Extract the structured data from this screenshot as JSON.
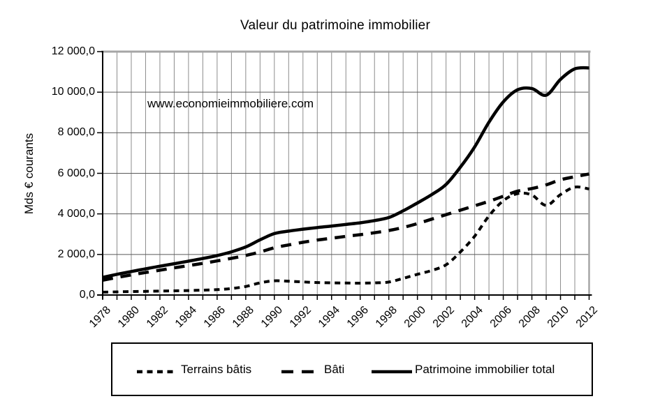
{
  "chart": {
    "title": "Valeur du patrimoine immobilier",
    "ylabel": "Mds € courants",
    "watermark": "www.economieimmobiliere.com",
    "legend": [
      {
        "label": "Terrains bâtis",
        "style": "short-dash"
      },
      {
        "label": "Bâti",
        "style": "long-dash"
      },
      {
        "label": "Patrimoine immobilier total",
        "style": "solid"
      }
    ]
  },
  "chart_data": {
    "type": "line",
    "title": "Valeur du patrimoine immobilier",
    "xlabel": "",
    "ylabel": "Mds € courants",
    "ylim": [
      0,
      12000
    ],
    "grid": true,
    "legend_position": "bottom",
    "line_color": "#000000",
    "grid_color_vertical": "#8c8c8c",
    "grid_color_horizontal": "#595959",
    "x": [
      1978,
      1979,
      1980,
      1981,
      1982,
      1983,
      1984,
      1985,
      1986,
      1987,
      1988,
      1989,
      1990,
      1991,
      1992,
      1993,
      1994,
      1995,
      1996,
      1997,
      1998,
      1999,
      2000,
      2001,
      2002,
      2003,
      2004,
      2005,
      2006,
      2007,
      2008,
      2009,
      2010,
      2011,
      2012
    ],
    "x_tick_years": [
      1978,
      1980,
      1982,
      1984,
      1986,
      1988,
      1990,
      1992,
      1994,
      1996,
      1998,
      2000,
      2002,
      2004,
      2006,
      2008,
      2010,
      2012
    ],
    "y_ticks": [
      {
        "value": 0,
        "label": "0,0"
      },
      {
        "value": 2000,
        "label": "2 000,0"
      },
      {
        "value": 4000,
        "label": "4 000,0"
      },
      {
        "value": 6000,
        "label": "6 000,0"
      },
      {
        "value": 8000,
        "label": "8 000,0"
      },
      {
        "value": 10000,
        "label": "10 000,0"
      },
      {
        "value": 12000,
        "label": "12 000,0"
      }
    ],
    "series": [
      {
        "name": "Terrains bâtis",
        "id": "terrains-batis",
        "style": "short-dash",
        "values": [
          140,
          155,
          170,
          180,
          195,
          205,
          220,
          240,
          265,
          320,
          420,
          600,
          700,
          680,
          645,
          615,
          600,
          590,
          585,
          600,
          640,
          820,
          1020,
          1210,
          1490,
          2120,
          2900,
          3900,
          4650,
          5000,
          4930,
          4420,
          4950,
          5320,
          5230
        ]
      },
      {
        "name": "Bâti",
        "id": "bati",
        "style": "long-dash",
        "values": [
          730,
          865,
          990,
          1110,
          1225,
          1340,
          1450,
          1560,
          1680,
          1810,
          1950,
          2120,
          2330,
          2470,
          2600,
          2710,
          2800,
          2890,
          2975,
          3070,
          3180,
          3330,
          3520,
          3740,
          3960,
          4180,
          4400,
          4620,
          4870,
          5120,
          5250,
          5430,
          5680,
          5830,
          5970
        ]
      },
      {
        "name": "Patrimoine immobilier total",
        "id": "patrimoine-immobilier-total",
        "style": "solid",
        "values": [
          870,
          1020,
          1160,
          1290,
          1420,
          1545,
          1670,
          1800,
          1945,
          2130,
          2370,
          2720,
          3030,
          3150,
          3245,
          3325,
          3400,
          3480,
          3560,
          3670,
          3820,
          4150,
          4540,
          4950,
          5450,
          6300,
          7300,
          8520,
          9520,
          10120,
          10180,
          9850,
          10630,
          11150,
          11200
        ]
      }
    ]
  }
}
